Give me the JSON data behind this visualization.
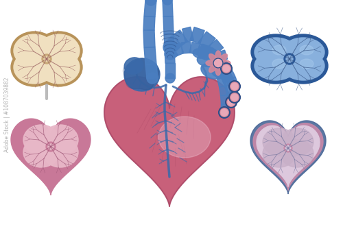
{
  "background_color": "#ffffff",
  "heart_pink": "#c8607a",
  "heart_pink2": "#d4789a",
  "heart_pink3": "#e8b0c8",
  "heart_pink_dark": "#a04060",
  "heart_highlight": "#f0c8d8",
  "blue_vessel": "#4a7ec0",
  "blue_vessel2": "#3a6aaa",
  "blue_dark": "#2a4e88",
  "blue_light": "#6898cc",
  "pink_opening": "#d4889a",
  "pink_opening2": "#e8a8b8",
  "vein_blue": "#3a6aaa",
  "vein_blue_thin": "#4a7ec0",
  "organ_beige_outer": "#b8935a",
  "organ_beige": "#e8d5a8",
  "organ_beige2": "#f0e0c0",
  "organ_beige_vein": "#9a6060",
  "organ_beige_center": "#c8a878",
  "organ_pink_outer": "#c87898",
  "organ_pink": "#d898aa",
  "organ_pink2": "#e8b8c8",
  "organ_pink_vein": "#a05878",
  "organ_blue_outer": "#2a5898",
  "organ_blue": "#6898cc",
  "organ_blue2": "#88b0dd",
  "organ_blue_vein": "#3a5888",
  "organ_lp_outer": "#7888a8",
  "organ_lp": "#c8b0c8",
  "organ_lp2": "#ddc8dd",
  "organ_lp_vein": "#7878a0",
  "organ_lp_edge_blue": "#4a6898",
  "organ_lp_edge_pink": "#c888a8",
  "stem_gray": "#aaaaaa",
  "watermark": "#999999",
  "figsize": [
    5.0,
    3.34
  ],
  "dpi": 100
}
